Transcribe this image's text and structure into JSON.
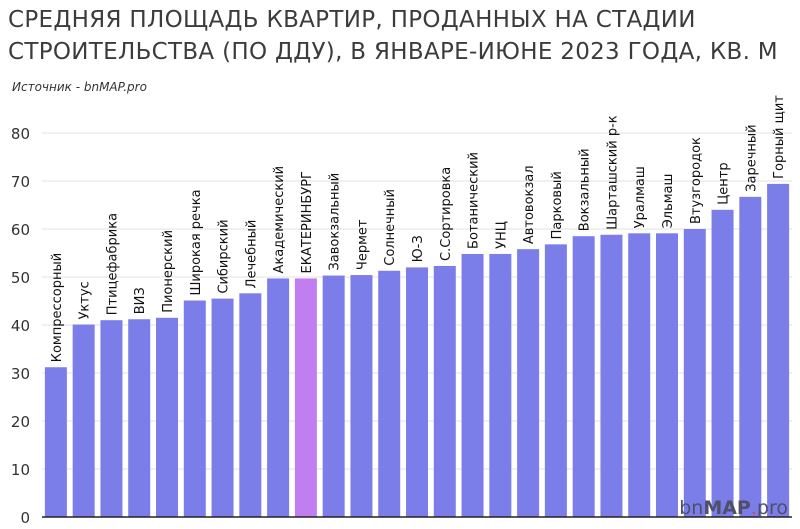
{
  "title_line1": "СРЕДНЯЯ ПЛОЩАДЬ КВАРТИР, ПРОДАННЫХ НА СТАДИИ",
  "title_line2": "СТРОИТЕЛЬСТВА (ПО ДДУ), В ЯНВАРЕ-ИЮНЕ 2023 ГОДА, КВ. М",
  "source": "Источник - bnMAP.pro",
  "logo": {
    "part1": "bn",
    "part2": "MAP",
    "dot": ".",
    "part3": "pro"
  },
  "colors": {
    "bar": "#7b7de9",
    "highlight": "#c17ef0",
    "grid": "#e2e2e2",
    "axis": "#222222"
  },
  "chart_data": {
    "type": "bar",
    "title": "СРЕДНЯЯ ПЛОЩАДЬ КВАРТИР, ПРОДАННЫХ НА СТАДИИ СТРОИТЕЛЬСТВА (ПО ДДУ), В ЯНВАРЕ-ИЮНЕ 2023 ГОДА, КВ. М",
    "categories": [
      "Компрессорный",
      "Уктус",
      "Птицефабрика",
      "ВИЗ",
      "Пионерский",
      "Широкая речка",
      "Сибирский",
      "Лечебный",
      "Академический",
      "ЕКАТЕРИНБУРГ",
      "Завокзальный",
      "Чермет",
      "Солнечный",
      "Ю-З",
      "С.Сортировка",
      "Ботанический",
      "УНЦ",
      "Автовокзал",
      "Парковый",
      "Вокзальный",
      "Шарташский р-к",
      "Уралмаш",
      "Эльмаш",
      "Втузгородок",
      "Центр",
      "Заречный",
      "Горный щит"
    ],
    "values": [
      31.2,
      40.1,
      41.0,
      41.2,
      41.5,
      45.1,
      45.5,
      46.6,
      49.7,
      49.7,
      50.3,
      50.4,
      51.3,
      52.0,
      52.3,
      54.8,
      54.8,
      55.8,
      56.8,
      58.5,
      58.8,
      59.1,
      59.1,
      60.0,
      64.0,
      66.7,
      69.4
    ],
    "highlight": [
      "ЕКАТЕРИНБУРГ"
    ],
    "ylim": [
      0,
      80
    ],
    "yticks": [
      0,
      10,
      20,
      30,
      40,
      50,
      60,
      70,
      80
    ],
    "grid": true,
    "xlabel": "",
    "ylabel": ""
  }
}
